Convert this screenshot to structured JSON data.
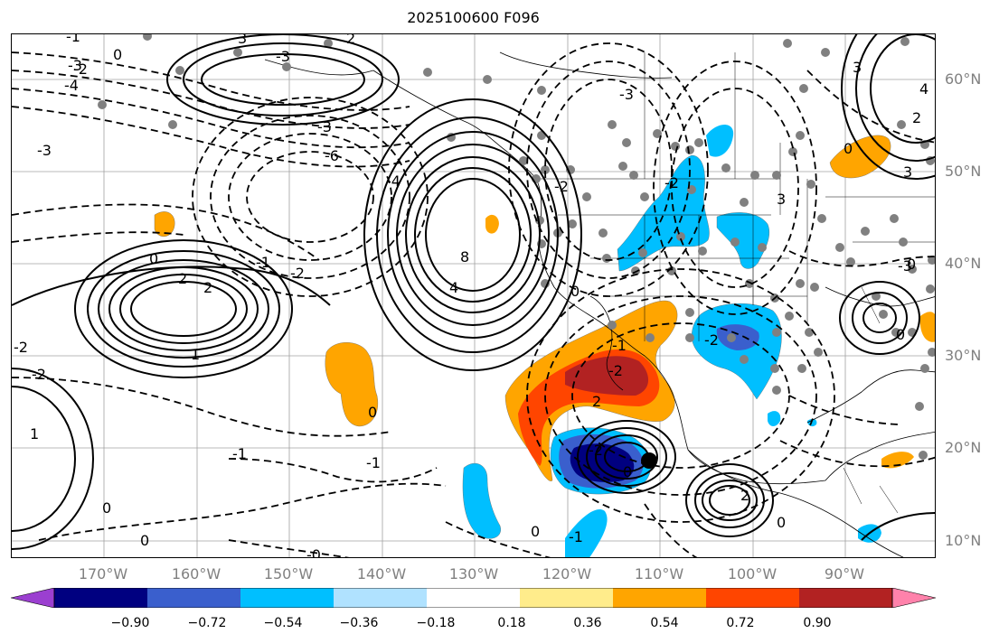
{
  "title": "2025100600 F096",
  "lat_labels": [
    "60°N",
    "50°N",
    "40°N",
    "30°N",
    "20°N",
    "10°N"
  ],
  "lon_labels": [
    "170°W",
    "160°W",
    "150°W",
    "140°W",
    "130°W",
    "120°W",
    "110°W",
    "100°W",
    "90°W"
  ],
  "colorbar": {
    "ticks": [
      "−0.90",
      "−0.72",
      "−0.54",
      "−0.36",
      "−0.18",
      "0.18",
      "0.36",
      "0.54",
      "0.72",
      "0.90"
    ],
    "colors": [
      "#9b3fd0",
      "#000080",
      "#3a5fcd",
      "#00bfff",
      "#b0e2ff",
      "#ffffff",
      "#ffec8b",
      "#ffa500",
      "#ff4500",
      "#b22222",
      "#ff82ab"
    ]
  },
  "contour_labels": [
    {
      "text": "-1",
      "name": "contour-label-1"
    },
    {
      "text": "-3",
      "name": "contour-label-2"
    },
    {
      "text": "2",
      "name": "contour-label-3"
    },
    {
      "text": "0",
      "name": "contour-label-4"
    },
    {
      "text": "-2",
      "name": "contour-label-5"
    },
    {
      "text": "-4",
      "name": "contour-label-6"
    },
    {
      "text": "-3",
      "name": "contour-label-7"
    },
    {
      "text": "-3",
      "name": "contour-label-8"
    },
    {
      "text": "-6",
      "name": "contour-label-9"
    },
    {
      "text": "-4",
      "name": "contour-label-10"
    },
    {
      "text": "-3",
      "name": "contour-label-11"
    },
    {
      "text": "3",
      "name": "contour-label-12"
    },
    {
      "text": "-2",
      "name": "contour-label-13"
    },
    {
      "text": "0",
      "name": "contour-label-14"
    },
    {
      "text": "2",
      "name": "contour-label-15"
    },
    {
      "text": "2",
      "name": "contour-label-16"
    },
    {
      "text": "1",
      "name": "contour-label-17"
    },
    {
      "text": "-1",
      "name": "contour-label-18"
    },
    {
      "text": "-2",
      "name": "contour-label-19"
    },
    {
      "text": "-2",
      "name": "contour-label-20"
    },
    {
      "text": "-1",
      "name": "contour-label-21"
    },
    {
      "text": "1",
      "name": "contour-label-22"
    },
    {
      "text": "0",
      "name": "contour-label-23"
    },
    {
      "text": "0",
      "name": "contour-label-24"
    },
    {
      "text": "-1",
      "name": "contour-label-25"
    },
    {
      "text": "-0",
      "name": "contour-label-26"
    },
    {
      "text": "0",
      "name": "contour-label-27"
    },
    {
      "text": "8",
      "name": "contour-label-28"
    },
    {
      "text": "4",
      "name": "contour-label-29"
    },
    {
      "text": "0",
      "name": "contour-label-30"
    },
    {
      "text": "0",
      "name": "contour-label-31"
    },
    {
      "text": "-1",
      "name": "contour-label-32"
    },
    {
      "text": "-2",
      "name": "contour-label-33"
    },
    {
      "text": "-2",
      "name": "contour-label-34"
    },
    {
      "text": "0",
      "name": "contour-label-35"
    },
    {
      "text": "2",
      "name": "contour-label-36"
    },
    {
      "text": "-2",
      "name": "contour-label-37"
    },
    {
      "text": "-2",
      "name": "contour-label-38"
    },
    {
      "text": "-1",
      "name": "contour-label-39"
    },
    {
      "text": "-2",
      "name": "contour-label-40"
    },
    {
      "text": "2",
      "name": "contour-label-41"
    },
    {
      "text": "0",
      "name": "contour-label-42"
    },
    {
      "text": "-3",
      "name": "contour-label-43"
    },
    {
      "text": "0",
      "name": "contour-label-44"
    },
    {
      "text": "3",
      "name": "contour-label-45"
    },
    {
      "text": "2",
      "name": "contour-label-46"
    },
    {
      "text": "4",
      "name": "contour-label-47"
    },
    {
      "text": "0",
      "name": "contour-label-48"
    },
    {
      "text": "3",
      "name": "contour-label-49"
    },
    {
      "text": "-3",
      "name": "contour-label-50"
    },
    {
      "text": "3",
      "name": "contour-label-51"
    },
    {
      "text": "0",
      "name": "contour-label-52"
    }
  ]
}
